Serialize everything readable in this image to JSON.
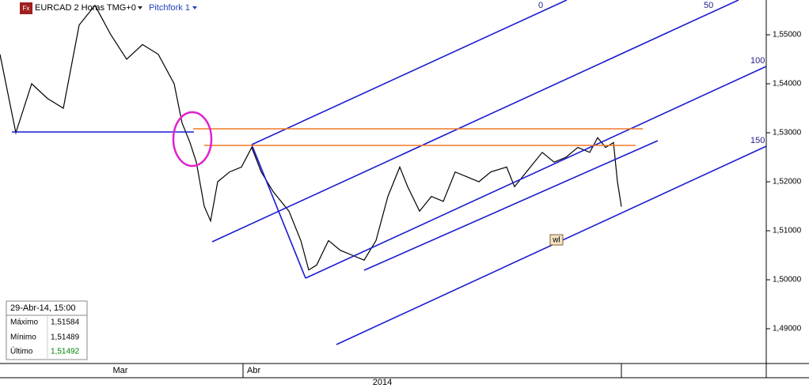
{
  "chart_data": {
    "type": "line",
    "title": "EURCAD 2 Horas TMG+0",
    "tool": "Pitchfork 1",
    "x": [
      0,
      20,
      40,
      60,
      80,
      100,
      120,
      140,
      160,
      180,
      200,
      220,
      230,
      240,
      248,
      258,
      266,
      275,
      290,
      305,
      318,
      330,
      345,
      365,
      380,
      390,
      400,
      415,
      430,
      445,
      460,
      475,
      490,
      505,
      515,
      530,
      545,
      560,
      575,
      590,
      605,
      620,
      640,
      650,
      665,
      685,
      700,
      715,
      730,
      745,
      755,
      765,
      775,
      780,
      785
    ],
    "values": [
      1.546,
      1.53,
      1.54,
      1.537,
      1.535,
      1.552,
      1.556,
      1.55,
      1.545,
      1.548,
      1.546,
      1.54,
      1.532,
      1.528,
      1.524,
      1.515,
      1.512,
      1.52,
      1.522,
      1.523,
      1.527,
      1.522,
      1.518,
      1.514,
      1.508,
      1.502,
      1.503,
      1.508,
      1.506,
      1.505,
      1.504,
      1.508,
      1.517,
      1.523,
      1.519,
      1.514,
      1.517,
      1.516,
      1.522,
      1.521,
      1.52,
      1.522,
      1.523,
      1.519,
      1.522,
      1.526,
      1.524,
      1.525,
      1.527,
      1.526,
      1.529,
      1.527,
      1.528,
      1.52,
      1.51492
    ],
    "color": "#000000",
    "xlim": [
      0,
      968
    ],
    "ylim": [
      1.4829,
      1.5571
    ],
    "yticks": [
      {
        "value": 1.49,
        "label": "1,49000"
      },
      {
        "value": 1.5,
        "label": "1,50000"
      },
      {
        "value": 1.51,
        "label": "1,51000"
      },
      {
        "value": 1.52,
        "label": "1,52000"
      },
      {
        "value": 1.53,
        "label": "1,53000"
      },
      {
        "value": 1.54,
        "label": "1,54000"
      },
      {
        "value": 1.55,
        "label": "1,55000"
      }
    ],
    "months": [
      "Mar",
      "Abr"
    ],
    "year": "2014",
    "pitchfork_labels": [
      "0",
      "50",
      "100",
      "150"
    ],
    "annotation": "wl",
    "info": {
      "date": "29-Abr-14, 15:00",
      "rows": [
        [
          "Máximo",
          "1,51584"
        ],
        [
          "Mínimo",
          "1,51489"
        ],
        [
          "Último",
          "1,51492"
        ]
      ]
    }
  }
}
